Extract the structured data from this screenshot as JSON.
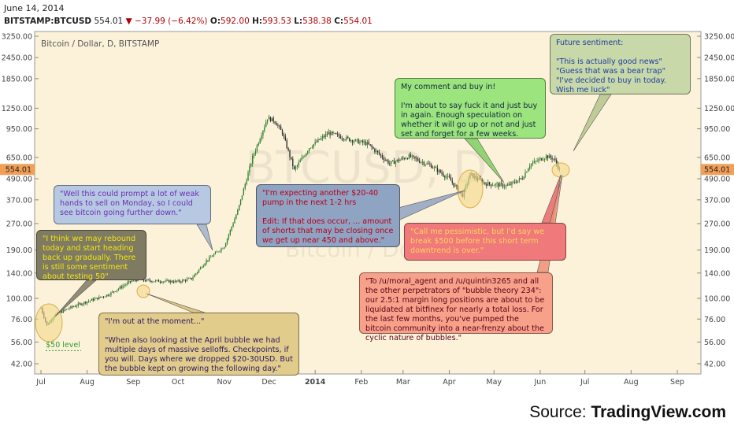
{
  "header": {
    "date": "June 14, 2014",
    "symbol": "BITSTAMP:BTCUSD",
    "last": "554.01",
    "change": "▼ −37.99 (−6.42%)",
    "open_label": "O:",
    "open": "592.00",
    "high_label": "H:",
    "high": "593.53",
    "low_label": "L:",
    "low": "538.38",
    "close_label": "C:",
    "close": "554.01"
  },
  "chart_title": "Bitcoin / Dollar, D, BITSTAMP",
  "watermark": {
    "line1": "BTCUSD, D",
    "line2": "Bitcoin / Dollar"
  },
  "source": {
    "prefix": "Source: ",
    "brand": "TradingView.com"
  },
  "colors": {
    "background": "#fcf2d9",
    "up": "#2f7d2f",
    "down": "#2c2c2c",
    "price_tag": "#f19e57"
  },
  "annotations": {
    "grey_note": "\"I think we may rebound today and start heading back up gradually. There is still some sentiment about testing 50\"",
    "blue_note": "\"Well this could prompt a lot of weak hands to sell on Monday, so I could see bitcoin going further down.\"",
    "tan_note": "\"I'm out at the moment...\"\n\n\"When also looking at the April bubble we had multiple days of massive selloffs. Checkpoints, if you will. Days where we dropped $20-30USD. But the bubble kept on growing the following day.\"",
    "slate_note": "\"I'm expecting another $20-40 pump in the next 1-2 hrs\n\nEdit: If that does occur, ... amount of shorts that may be closing once we get up near 450 and above.\"",
    "green_note": "My comment and buy in!\n\nI'm about to say fuck it and just buy in again. Enough speculation on whether it will go up or not and just set and forget for a few weeks.",
    "red_note": "\"Call me pessimistic, but I'd say we break $500 before this short term downtrend is over.\"",
    "salmon_note": "\"To /u/moral_agent and /u/quintin3265 and all the other perpetrators of \"bubble theory 234\": our 2.5:1 margin long positions are about to be liquidated at bitfinex for nearly a total loss. For the last few months, you've pumped the bitcoin community into a near-frenzy about the cyclic nature of bubbles.\"",
    "future_note": "Future sentiment:\n\n\"This is actually good news\"\n\"Guess that was a bear trap\"\n\"I've decided to buy in today. Wish me luck\"",
    "level_label": "$50 level"
  },
  "chart_data": {
    "type": "candlestick",
    "title": "Bitcoin / Dollar, D, BITSTAMP",
    "scale": "log",
    "y_ticks": [
      "42.00",
      "56.00",
      "76.00",
      "100.00",
      "140.00",
      "190.00",
      "270.00",
      "370.00",
      "490.00",
      "650.00",
      "950.00",
      "1250.00",
      "1850.00",
      "2450.00",
      "3250.00"
    ],
    "x_ticks": [
      "Jul",
      "Aug",
      "Sep",
      "Oct",
      "Nov",
      "Dec",
      "2014",
      "Feb",
      "Mar",
      "Apr",
      "May",
      "Jun",
      "Jul",
      "Aug",
      "Sep"
    ],
    "last_price": "554.01",
    "series": [
      {
        "date": "2013-07-01",
        "close": 88
      },
      {
        "date": "2013-07-05",
        "close": 70
      },
      {
        "date": "2013-07-10",
        "close": 80
      },
      {
        "date": "2013-07-20",
        "close": 88
      },
      {
        "date": "2013-08-01",
        "close": 96
      },
      {
        "date": "2013-08-15",
        "close": 105
      },
      {
        "date": "2013-09-01",
        "close": 128
      },
      {
        "date": "2013-09-15",
        "close": 126
      },
      {
        "date": "2013-10-01",
        "close": 125
      },
      {
        "date": "2013-10-10",
        "close": 130
      },
      {
        "date": "2013-10-20",
        "close": 165
      },
      {
        "date": "2013-11-01",
        "close": 200
      },
      {
        "date": "2013-11-10",
        "close": 320
      },
      {
        "date": "2013-11-20",
        "close": 650
      },
      {
        "date": "2013-11-30",
        "close": 1100
      },
      {
        "date": "2013-12-05",
        "close": 1050
      },
      {
        "date": "2013-12-10",
        "close": 900
      },
      {
        "date": "2013-12-18",
        "close": 550
      },
      {
        "date": "2013-12-28",
        "close": 740
      },
      {
        "date": "2014-01-10",
        "close": 900
      },
      {
        "date": "2014-01-25",
        "close": 820
      },
      {
        "date": "2014-02-05",
        "close": 780
      },
      {
        "date": "2014-02-20",
        "close": 600
      },
      {
        "date": "2014-03-05",
        "close": 660
      },
      {
        "date": "2014-03-20",
        "close": 580
      },
      {
        "date": "2014-04-01",
        "close": 490
      },
      {
        "date": "2014-04-10",
        "close": 390
      },
      {
        "date": "2014-04-15",
        "close": 520
      },
      {
        "date": "2014-04-25",
        "close": 460
      },
      {
        "date": "2014-05-10",
        "close": 445
      },
      {
        "date": "2014-05-20",
        "close": 495
      },
      {
        "date": "2014-05-25",
        "close": 590
      },
      {
        "date": "2014-06-05",
        "close": 660
      },
      {
        "date": "2014-06-10",
        "close": 640
      },
      {
        "date": "2014-06-14",
        "close": 554
      }
    ]
  }
}
